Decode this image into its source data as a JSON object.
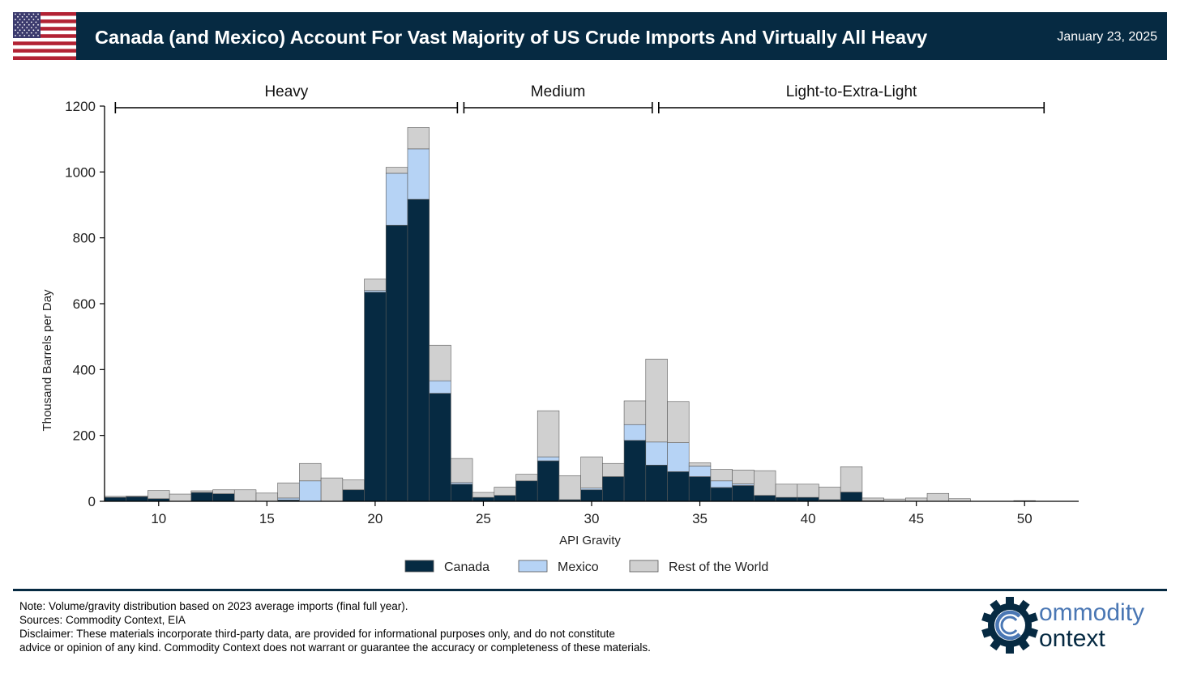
{
  "header": {
    "title": "Canada (and Mexico) Account For Vast Majority of US Crude Imports And Virtually All Heavy",
    "date": "January 23, 2025",
    "flag": "us-flag-icon"
  },
  "colors": {
    "header_bg": "#062a42",
    "canada": "#062a42",
    "mexico": "#b6d3f5",
    "rest": "#d0d0d0"
  },
  "chart_data": {
    "type": "bar",
    "stacked": true,
    "title": "",
    "xlabel": "API Gravity",
    "ylabel": "Thousand Barrels per Day",
    "xlim": [
      7.5,
      52.5
    ],
    "ylim": [
      0,
      1200
    ],
    "xticks": [
      10,
      15,
      20,
      25,
      30,
      35,
      40,
      45,
      50
    ],
    "yticks": [
      0,
      200,
      400,
      600,
      800,
      1000,
      1200
    ],
    "grid": false,
    "legend": "bottom",
    "bin_width": 1,
    "x": [
      8,
      9,
      10,
      11,
      12,
      13,
      14,
      15,
      16,
      17,
      18,
      19,
      20,
      21,
      22,
      23,
      24,
      25,
      26,
      27,
      28,
      29,
      30,
      31,
      32,
      33,
      34,
      35,
      36,
      37,
      38,
      39,
      40,
      41,
      42,
      43,
      44,
      45,
      46,
      47,
      48,
      49,
      50
    ],
    "series": [
      {
        "name": "Canada",
        "values": [
          12,
          14,
          8,
          0,
          27,
          23,
          0,
          0,
          4,
          0,
          0,
          35,
          635,
          838,
          917,
          328,
          52,
          12,
          18,
          62,
          123,
          5,
          35,
          75,
          185,
          110,
          90,
          75,
          42,
          48,
          18,
          12,
          12,
          5,
          28,
          2,
          0,
          0,
          0,
          0,
          0,
          0,
          2
        ]
      },
      {
        "name": "Mexico",
        "values": [
          0,
          0,
          0,
          0,
          0,
          0,
          0,
          0,
          6,
          62,
          0,
          0,
          5,
          158,
          153,
          38,
          5,
          0,
          0,
          0,
          12,
          0,
          5,
          0,
          48,
          70,
          88,
          32,
          20,
          5,
          0,
          0,
          0,
          0,
          0,
          0,
          0,
          0,
          0,
          0,
          0,
          0,
          0
        ]
      },
      {
        "name": "Rest of the World",
        "values": [
          3,
          2,
          25,
          22,
          5,
          12,
          35,
          25,
          46,
          53,
          71,
          30,
          35,
          18,
          65,
          108,
          73,
          15,
          25,
          20,
          140,
          73,
          95,
          40,
          72,
          252,
          125,
          10,
          35,
          42,
          75,
          40,
          40,
          38,
          77,
          8,
          7,
          10,
          24,
          8,
          0,
          0,
          0
        ]
      }
    ],
    "brackets": [
      {
        "label": "Heavy",
        "start": 8,
        "end": 23.8
      },
      {
        "label": "Medium",
        "start": 24.1,
        "end": 32.8
      },
      {
        "label": "Light-to-Extra-Light",
        "start": 33.1,
        "end": 50.9
      }
    ]
  },
  "footer": {
    "note": "Note: Volume/gravity distribution based on 2023 average imports (final full year).",
    "sources": "Sources: Commodity Context, EIA",
    "disclaimer1": "Disclaimer: These materials incorporate third-party data, are provided for informational purposes only, and do not constitute",
    "disclaimer2": "advice or opinion of any kind. Commodity Context does not warrant or guarantee the accuracy or completeness of these materials.",
    "logo_line1": "ommodity",
    "logo_line2": "ontext",
    "logo_icon": "gear-c-logo-icon"
  }
}
